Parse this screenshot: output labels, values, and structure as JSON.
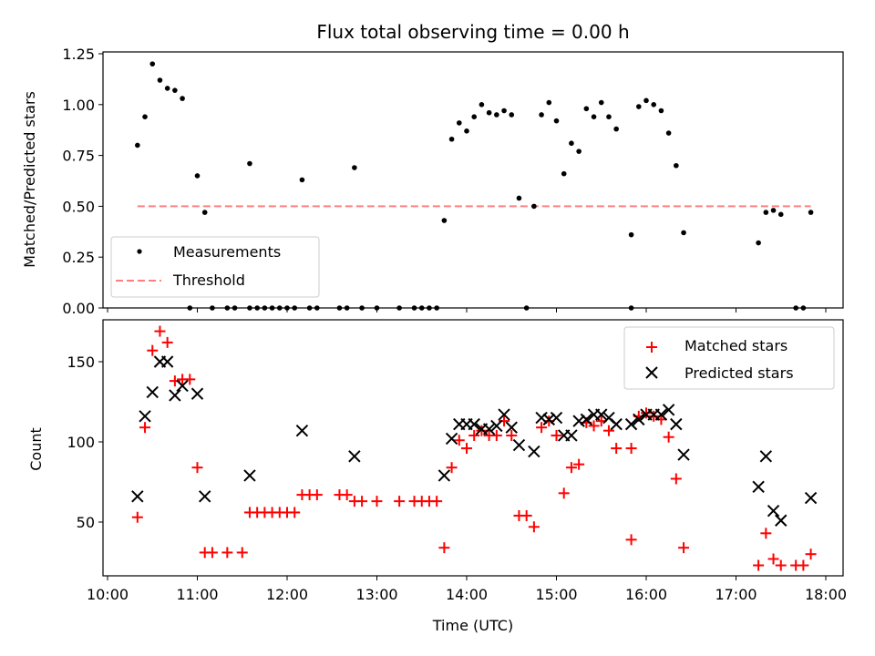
{
  "chart_data": [
    {
      "type": "scatter",
      "title": "Flux total observing time = 0.00 h",
      "xlabel": "",
      "ylabel": "Matched/Predicted stars",
      "xlim": [
        "10:00",
        "18:00"
      ],
      "ylim": [
        0,
        1.25
      ],
      "yticks": [
        "0.00",
        "0.25",
        "0.50",
        "0.75",
        "1.00",
        "1.25"
      ],
      "legend_position": "lower-left",
      "series": [
        {
          "name": "Measurements",
          "marker": "dot",
          "color": "#000000",
          "points": [
            [
              "10:20",
              0.8
            ],
            [
              "10:25",
              0.94
            ],
            [
              "10:30",
              1.2
            ],
            [
              "10:35",
              1.12
            ],
            [
              "10:40",
              1.08
            ],
            [
              "10:45",
              1.07
            ],
            [
              "10:50",
              1.03
            ],
            [
              "10:55",
              0.0
            ],
            [
              "11:00",
              0.65
            ],
            [
              "11:05",
              0.47
            ],
            [
              "11:10",
              0.0
            ],
            [
              "11:20",
              0.0
            ],
            [
              "11:25",
              0.0
            ],
            [
              "11:35",
              0.0
            ],
            [
              "11:35",
              0.71
            ],
            [
              "11:40",
              0.0
            ],
            [
              "11:45",
              0.0
            ],
            [
              "11:50",
              0.0
            ],
            [
              "11:55",
              0.0
            ],
            [
              "12:00",
              0.0
            ],
            [
              "12:05",
              0.0
            ],
            [
              "12:10",
              0.63
            ],
            [
              "12:15",
              0.0
            ],
            [
              "12:20",
              0.0
            ],
            [
              "12:35",
              0.0
            ],
            [
              "12:40",
              0.0
            ],
            [
              "12:45",
              0.69
            ],
            [
              "12:50",
              0.0
            ],
            [
              "13:00",
              0.0
            ],
            [
              "13:15",
              0.0
            ],
            [
              "13:25",
              0.0
            ],
            [
              "13:30",
              0.0
            ],
            [
              "13:35",
              0.0
            ],
            [
              "13:40",
              0.0
            ],
            [
              "13:45",
              0.43
            ],
            [
              "13:50",
              0.83
            ],
            [
              "13:55",
              0.91
            ],
            [
              "14:00",
              0.87
            ],
            [
              "14:05",
              0.94
            ],
            [
              "14:10",
              1.0
            ],
            [
              "14:15",
              0.96
            ],
            [
              "14:20",
              0.95
            ],
            [
              "14:25",
              0.97
            ],
            [
              "14:30",
              0.95
            ],
            [
              "14:35",
              0.54
            ],
            [
              "14:40",
              0.0
            ],
            [
              "14:45",
              0.5
            ],
            [
              "14:50",
              0.95
            ],
            [
              "14:55",
              1.01
            ],
            [
              "15:00",
              0.92
            ],
            [
              "15:05",
              0.66
            ],
            [
              "15:10",
              0.81
            ],
            [
              "15:15",
              0.77
            ],
            [
              "15:20",
              0.98
            ],
            [
              "15:25",
              0.94
            ],
            [
              "15:30",
              1.01
            ],
            [
              "15:35",
              0.94
            ],
            [
              "15:40",
              0.88
            ],
            [
              "15:50",
              0.0
            ],
            [
              "15:50",
              0.36
            ],
            [
              "15:55",
              0.99
            ],
            [
              "16:00",
              1.02
            ],
            [
              "16:05",
              1.0
            ],
            [
              "16:10",
              0.97
            ],
            [
              "16:15",
              0.86
            ],
            [
              "16:20",
              0.7
            ],
            [
              "16:25",
              0.37
            ],
            [
              "17:15",
              0.32
            ],
            [
              "17:20",
              0.47
            ],
            [
              "17:25",
              0.48
            ],
            [
              "17:30",
              0.46
            ],
            [
              "17:40",
              0.0
            ],
            [
              "17:45",
              0.0
            ],
            [
              "17:50",
              0.47
            ]
          ]
        },
        {
          "name": "Threshold",
          "type": "line",
          "dashed": true,
          "color": "#ff7f7f",
          "points": [
            [
              "10:20",
              0.5
            ],
            [
              "17:50",
              0.5
            ]
          ]
        }
      ]
    },
    {
      "type": "scatter",
      "title": "",
      "xlabel": "Time (UTC)",
      "ylabel": "Count",
      "xlim": [
        "10:00",
        "18:00"
      ],
      "xticks": [
        "10:00",
        "11:00",
        "12:00",
        "13:00",
        "14:00",
        "15:00",
        "16:00",
        "17:00",
        "18:00"
      ],
      "ylim": [
        15,
        175
      ],
      "yticks": [
        "50",
        "100",
        "150"
      ],
      "legend_position": "top-right",
      "series": [
        {
          "name": "Matched stars",
          "marker": "plus",
          "color": "#ff0000",
          "points": [
            [
              "10:20",
              53
            ],
            [
              "10:25",
              109
            ],
            [
              "10:30",
              157
            ],
            [
              "10:35",
              169
            ],
            [
              "10:40",
              162
            ],
            [
              "10:45",
              138
            ],
            [
              "10:50",
              139
            ],
            [
              "10:55",
              139
            ],
            [
              "11:00",
              84
            ],
            [
              "11:05",
              31
            ],
            [
              "11:10",
              31
            ],
            [
              "11:20",
              31
            ],
            [
              "11:30",
              31
            ],
            [
              "11:35",
              56
            ],
            [
              "11:40",
              56
            ],
            [
              "11:45",
              56
            ],
            [
              "11:50",
              56
            ],
            [
              "11:55",
              56
            ],
            [
              "12:00",
              56
            ],
            [
              "12:05",
              56
            ],
            [
              "12:10",
              67
            ],
            [
              "12:15",
              67
            ],
            [
              "12:20",
              67
            ],
            [
              "12:35",
              67
            ],
            [
              "12:40",
              67
            ],
            [
              "12:45",
              63
            ],
            [
              "12:50",
              63
            ],
            [
              "13:00",
              63
            ],
            [
              "13:15",
              63
            ],
            [
              "13:25",
              63
            ],
            [
              "13:30",
              63
            ],
            [
              "13:35",
              63
            ],
            [
              "13:40",
              63
            ],
            [
              "13:45",
              34
            ],
            [
              "13:50",
              84
            ],
            [
              "13:55",
              101
            ],
            [
              "14:00",
              96
            ],
            [
              "14:05",
              104
            ],
            [
              "14:10",
              107
            ],
            [
              "14:15",
              104
            ],
            [
              "14:20",
              104
            ],
            [
              "14:25",
              113
            ],
            [
              "14:30",
              104
            ],
            [
              "14:35",
              54
            ],
            [
              "14:40",
              54
            ],
            [
              "14:45",
              47
            ],
            [
              "14:50",
              109
            ],
            [
              "14:55",
              113
            ],
            [
              "15:00",
              104
            ],
            [
              "15:05",
              68
            ],
            [
              "15:10",
              84
            ],
            [
              "15:15",
              86
            ],
            [
              "15:20",
              112
            ],
            [
              "15:25",
              110
            ],
            [
              "15:30",
              113
            ],
            [
              "15:35",
              107
            ],
            [
              "15:40",
              96
            ],
            [
              "15:50",
              96
            ],
            [
              "15:50",
              39
            ],
            [
              "15:55",
              116
            ],
            [
              "16:00",
              118
            ],
            [
              "16:05",
              116
            ],
            [
              "16:10",
              114
            ],
            [
              "16:15",
              103
            ],
            [
              "16:20",
              77
            ],
            [
              "16:25",
              34
            ],
            [
              "17:15",
              23
            ],
            [
              "17:20",
              43
            ],
            [
              "17:25",
              27
            ],
            [
              "17:30",
              23
            ],
            [
              "17:40",
              23
            ],
            [
              "17:45",
              23
            ],
            [
              "17:50",
              30
            ]
          ]
        },
        {
          "name": "Predicted stars",
          "marker": "x",
          "color": "#000000",
          "points": [
            [
              "10:20",
              66
            ],
            [
              "10:25",
              116
            ],
            [
              "10:30",
              131
            ],
            [
              "10:35",
              150
            ],
            [
              "10:40",
              150
            ],
            [
              "10:45",
              129
            ],
            [
              "10:50",
              135
            ],
            [
              "11:00",
              130
            ],
            [
              "11:05",
              66
            ],
            [
              "11:35",
              79
            ],
            [
              "12:10",
              107
            ],
            [
              "12:45",
              91
            ],
            [
              "13:45",
              79
            ],
            [
              "13:50",
              102
            ],
            [
              "13:55",
              111
            ],
            [
              "14:00",
              111
            ],
            [
              "14:05",
              111
            ],
            [
              "14:10",
              108
            ],
            [
              "14:15",
              108
            ],
            [
              "14:20",
              110
            ],
            [
              "14:25",
              117
            ],
            [
              "14:30",
              109
            ],
            [
              "14:35",
              98
            ],
            [
              "14:45",
              94
            ],
            [
              "14:50",
              115
            ],
            [
              "14:55",
              114
            ],
            [
              "15:00",
              115
            ],
            [
              "15:05",
              104
            ],
            [
              "15:10",
              104
            ],
            [
              "15:15",
              113
            ],
            [
              "15:20",
              114
            ],
            [
              "15:25",
              117
            ],
            [
              "15:30",
              117
            ],
            [
              "15:35",
              115
            ],
            [
              "15:40",
              111
            ],
            [
              "15:50",
              111
            ],
            [
              "15:55",
              114
            ],
            [
              "16:00",
              117
            ],
            [
              "16:05",
              117
            ],
            [
              "16:10",
              117
            ],
            [
              "16:15",
              120
            ],
            [
              "16:20",
              111
            ],
            [
              "16:25",
              92
            ],
            [
              "17:15",
              72
            ],
            [
              "17:20",
              91
            ],
            [
              "17:25",
              57
            ],
            [
              "17:30",
              51
            ],
            [
              "17:50",
              65
            ]
          ]
        }
      ]
    }
  ]
}
